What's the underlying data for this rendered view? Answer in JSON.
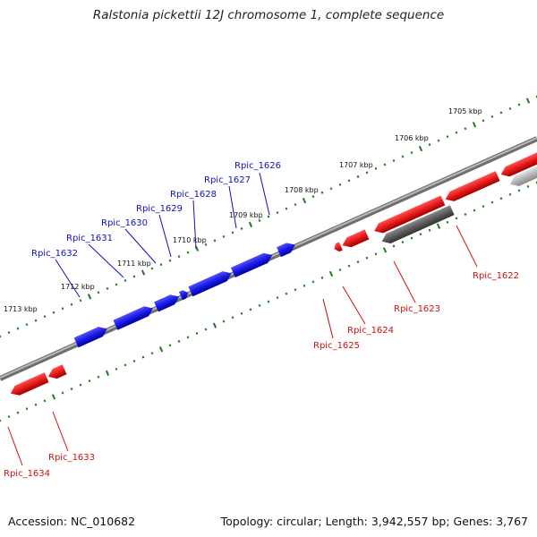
{
  "title": "Ralstonia pickettii 12J chromosome 1, complete sequence",
  "accession": "Accession: NC_010682",
  "summary": "Topology: circular; Length: 3,942,557 bp; Genes: 3,767",
  "colors": {
    "forward_gene": "#1a1ae6",
    "reverse_gene": "#e61a1a",
    "pseudo_gene_dark": "#5a5a5a",
    "pseudo_gene_light": "#b4b4b4",
    "backbone": "#8c8c8c",
    "tick": "#1e7a1e",
    "forward_label": "#1010c0",
    "reverse_label": "#d01010"
  },
  "kbp_markers": [
    {
      "kbp": 1705,
      "label": "1705 kbp"
    },
    {
      "kbp": 1706,
      "label": "1706 kbp"
    },
    {
      "kbp": 1707,
      "label": "1707 kbp"
    },
    {
      "kbp": 1708,
      "label": "1708 kbp"
    },
    {
      "kbp": 1709,
      "label": "1709 kbp"
    },
    {
      "kbp": 1710,
      "label": "1710 kbp"
    },
    {
      "kbp": 1711,
      "label": "1711 kbp"
    },
    {
      "kbp": 1712,
      "label": "1712 kbp"
    },
    {
      "kbp": 1713,
      "label": "1713 kbp"
    }
  ],
  "forward_genes": [
    {
      "label": "Rpic_1626"
    },
    {
      "label": "Rpic_1627"
    },
    {
      "label": "Rpic_1628"
    },
    {
      "label": "Rpic_1629"
    },
    {
      "label": "Rpic_1630"
    },
    {
      "label": "Rpic_1631"
    },
    {
      "label": "Rpic_1632"
    }
  ],
  "reverse_genes": [
    {
      "label": "Rpic_1622"
    },
    {
      "label": "Rpic_1623"
    },
    {
      "label": "Rpic_1624"
    },
    {
      "label": "Rpic_1625"
    },
    {
      "label": "Rpic_1633"
    },
    {
      "label": "Rpic_1634"
    }
  ]
}
